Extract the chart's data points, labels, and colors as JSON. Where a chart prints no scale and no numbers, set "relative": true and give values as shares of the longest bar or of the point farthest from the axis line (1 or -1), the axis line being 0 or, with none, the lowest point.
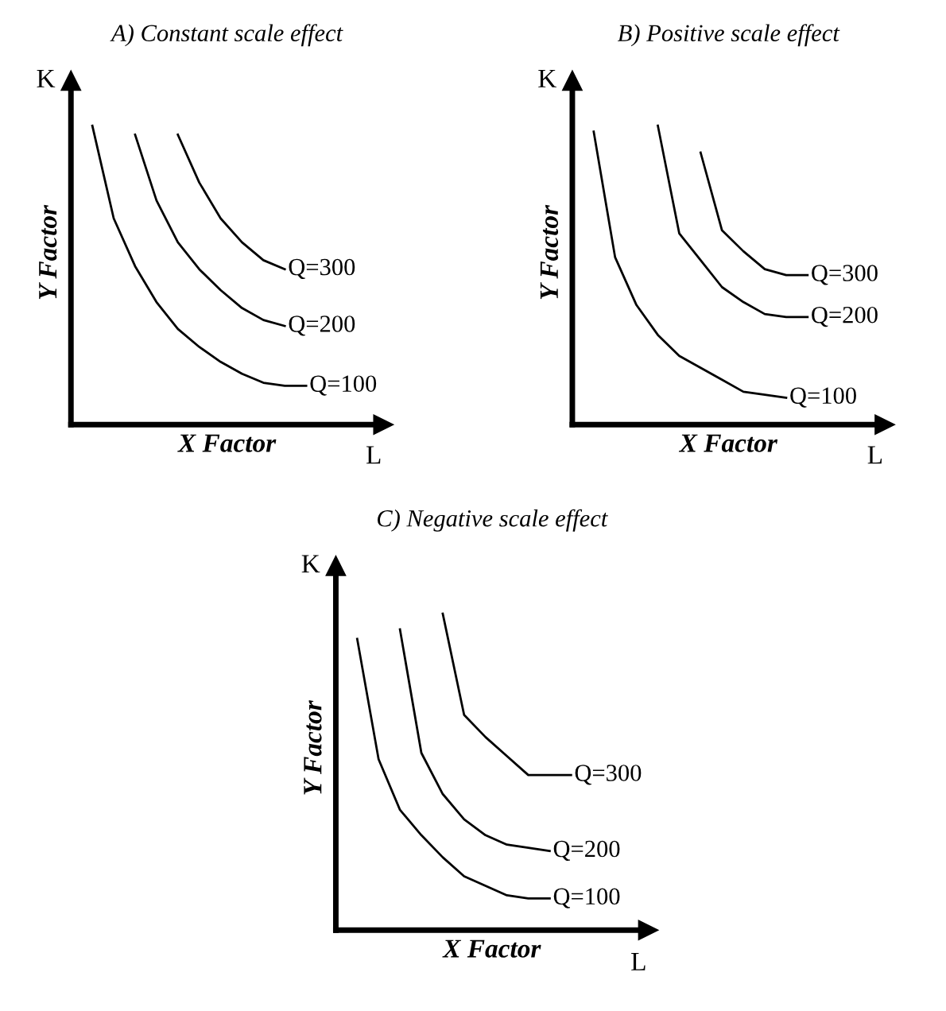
{
  "chart_data": [
    {
      "type": "line",
      "title": "A) Constant scale effect",
      "xlabel": "X Factor",
      "ylabel": "Y Factor",
      "annotations": [
        "K",
        "L"
      ],
      "relative": true,
      "tick_labels": false,
      "legend": false,
      "categories": [
        null,
        null,
        null,
        null,
        null,
        null,
        null,
        null,
        null,
        null,
        null
      ],
      "series": [
        {
          "name": "Q=100",
          "color": "#000000",
          "values": [
            1.0,
            0.69,
            0.53,
            0.41,
            0.32,
            0.26,
            0.21,
            0.17,
            0.14,
            0.13,
            0.13
          ]
        },
        {
          "name": "Q=200",
          "color": "#000000",
          "values": [
            null,
            null,
            0.97,
            0.75,
            0.61,
            0.52,
            0.45,
            0.39,
            0.35,
            0.33,
            null
          ]
        },
        {
          "name": "Q=300",
          "color": "#000000",
          "values": [
            null,
            null,
            null,
            null,
            0.97,
            0.81,
            0.69,
            0.61,
            0.55,
            0.52,
            null
          ]
        }
      ]
    },
    {
      "type": "line",
      "title": "B) Positive scale effect",
      "xlabel": "X Factor",
      "ylabel": "Y Factor",
      "annotations": [
        "K",
        "L"
      ],
      "relative": true,
      "tick_labels": false,
      "legend": false,
      "categories": [
        null,
        null,
        null,
        null,
        null,
        null,
        null,
        null,
        null,
        null,
        null
      ],
      "series": [
        {
          "name": "Q=100",
          "color": "#000000",
          "values": [
            0.98,
            0.56,
            0.4,
            0.3,
            0.23,
            0.19,
            0.15,
            0.11,
            0.1,
            0.09,
            null
          ]
        },
        {
          "name": "Q=200",
          "color": "#000000",
          "values": [
            null,
            null,
            null,
            1.0,
            0.64,
            0.55,
            0.46,
            0.41,
            0.37,
            0.36,
            0.36
          ]
        },
        {
          "name": "Q=300",
          "color": "#000000",
          "values": [
            null,
            null,
            null,
            null,
            null,
            0.91,
            0.65,
            0.58,
            0.52,
            0.5,
            0.5
          ]
        }
      ]
    },
    {
      "type": "line",
      "title": "C) Negative scale effect",
      "xlabel": "X Factor",
      "ylabel": "Y Factor",
      "annotations": [
        "K",
        "L"
      ],
      "relative": true,
      "tick_labels": false,
      "legend": false,
      "categories": [
        null,
        null,
        null,
        null,
        null,
        null,
        null,
        null,
        null,
        null,
        null
      ],
      "series": [
        {
          "name": "Q=100",
          "color": "#000000",
          "values": [
            0.92,
            0.54,
            0.38,
            0.3,
            0.23,
            0.17,
            0.14,
            0.11,
            0.1,
            0.1,
            null
          ]
        },
        {
          "name": "Q=200",
          "color": "#000000",
          "values": [
            null,
            null,
            0.95,
            0.56,
            0.43,
            0.35,
            0.3,
            0.27,
            0.26,
            0.25,
            null
          ]
        },
        {
          "name": "Q=300",
          "color": "#000000",
          "values": [
            null,
            null,
            null,
            null,
            1.0,
            0.68,
            0.61,
            0.55,
            0.49,
            0.49,
            0.49
          ]
        }
      ]
    }
  ]
}
